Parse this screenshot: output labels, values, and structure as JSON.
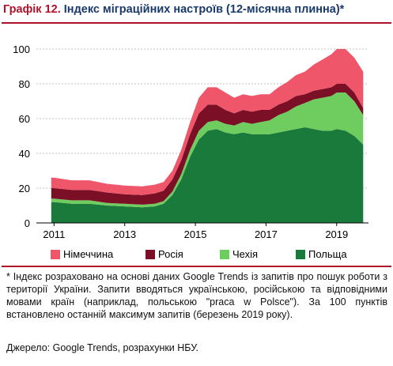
{
  "title": {
    "prefix": "Графік 12.",
    "text": "Індекс міграційних настроїв (12-місячна плинна)*"
  },
  "chart_data": {
    "type": "area",
    "stacked": true,
    "x": [
      2010.92,
      2011.0,
      2011.5,
      2012.0,
      2012.5,
      2013.0,
      2013.5,
      2013.85,
      2014.1,
      2014.35,
      2014.6,
      2014.85,
      2015.1,
      2015.35,
      2015.6,
      2015.85,
      2016.1,
      2016.35,
      2016.6,
      2016.85,
      2017.1,
      2017.35,
      2017.6,
      2017.85,
      2018.1,
      2018.35,
      2018.6,
      2018.85,
      2019.0,
      2019.25,
      2019.5,
      2019.75
    ],
    "series": [
      {
        "name": "Польща",
        "values": [
          12,
          12,
          11,
          11,
          10,
          9.5,
          9,
          9.5,
          11,
          16,
          25,
          38,
          48,
          53,
          54,
          52,
          51,
          52,
          51,
          51,
          51,
          52,
          53,
          54,
          55,
          54,
          53,
          53,
          54,
          53,
          50,
          45
        ],
        "color": "#1a7a3c"
      },
      {
        "name": "Чехія",
        "values": [
          2,
          2,
          2,
          2,
          1.5,
          1.5,
          1.5,
          1.5,
          1.5,
          2,
          3,
          4,
          5,
          5,
          5,
          5,
          5,
          6,
          6,
          7,
          8,
          10,
          11,
          13,
          14,
          17,
          19,
          20,
          21,
          22,
          20,
          17
        ],
        "color": "#6fcc5e"
      },
      {
        "name": "Росія",
        "values": [
          6,
          6,
          6,
          6,
          6,
          5.5,
          5.5,
          6,
          6,
          7,
          8,
          9,
          10,
          10,
          9,
          8,
          7,
          7,
          7,
          7,
          6,
          6,
          6,
          6,
          5,
          5,
          5,
          5,
          5,
          5,
          5,
          4
        ],
        "color": "#7a0f25"
      },
      {
        "name": "Німеччина",
        "values": [
          6,
          6,
          5.5,
          5.5,
          5,
          5,
          5,
          5,
          5,
          5,
          6,
          7,
          9,
          10,
          10,
          10,
          9,
          9,
          9,
          9,
          9,
          10,
          11,
          12,
          13,
          15,
          17,
          19,
          20,
          20,
          20,
          21
        ],
        "color": "#f0566a"
      }
    ],
    "xlim": [
      2010.5,
      2019.9
    ],
    "ylim": [
      0,
      110
    ],
    "xticks": [
      2011,
      2013,
      2015,
      2017,
      2019
    ],
    "yticks": [
      0,
      20,
      40,
      60,
      80,
      100
    ],
    "grid": true,
    "legend_position": "bottom"
  },
  "footnote": "* Індекс розраховано на основі даних Google Trends із запитів про пошук роботи з території України. Запити вводяться українською, російською та відповідними мовами країн (наприклад, польською \"praca w Polsce\"). За 100 пунктів встановлено останній максимум запитів (березень 2019 року).",
  "source": "Джерело: Google Trends, розрахунки НБУ."
}
